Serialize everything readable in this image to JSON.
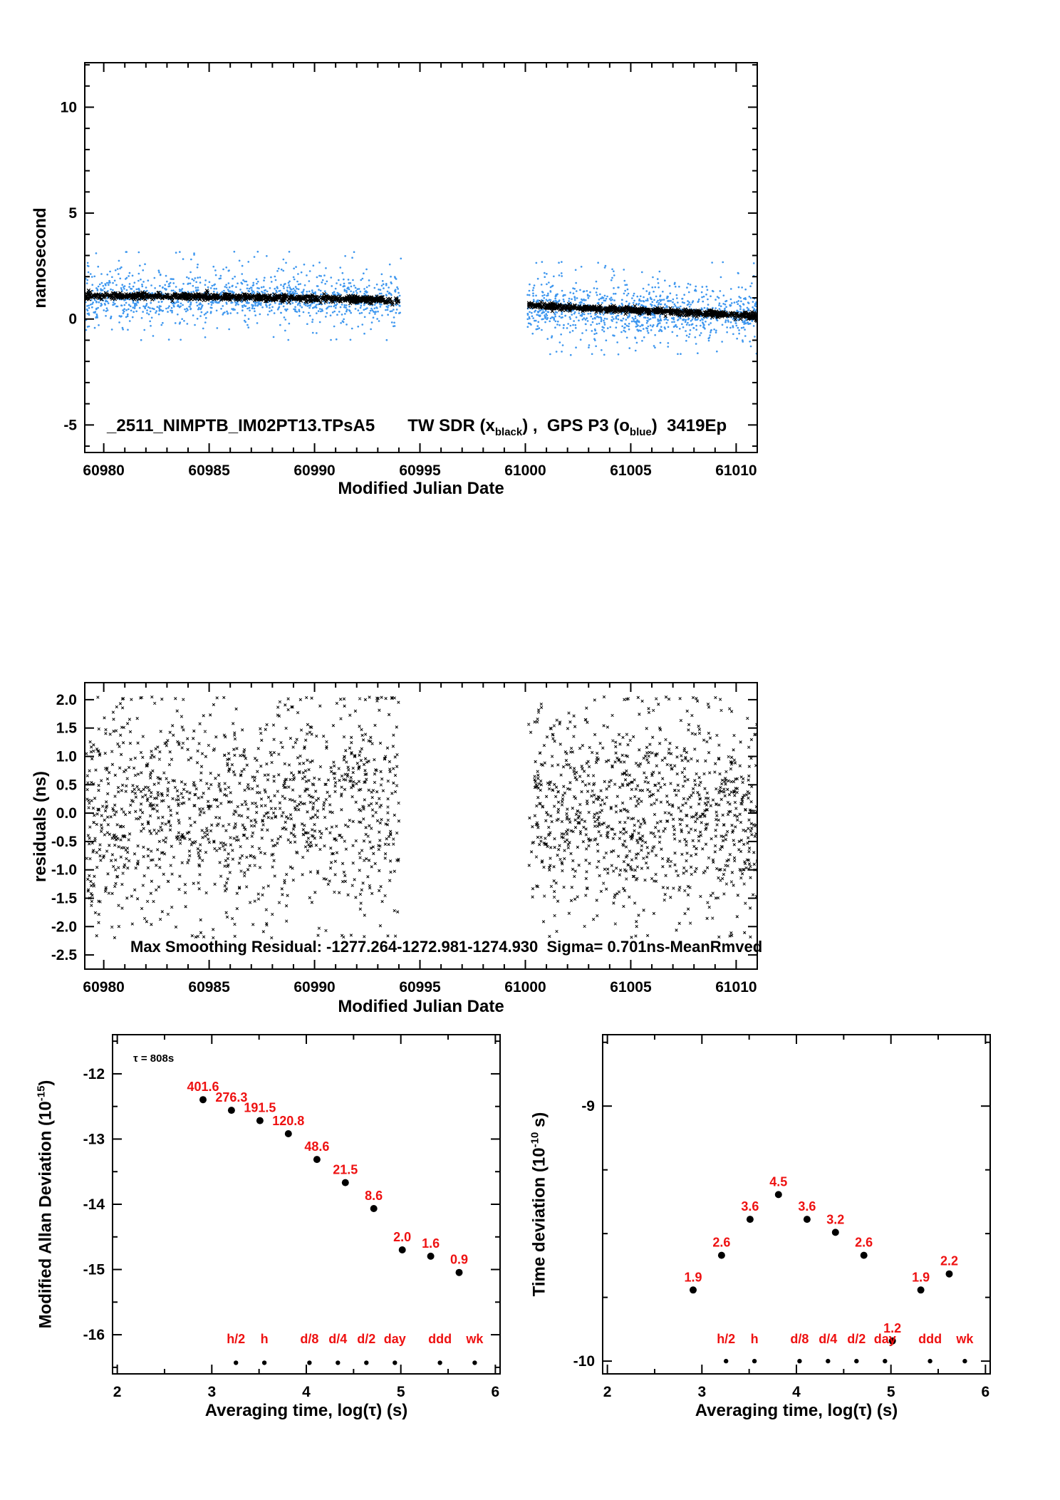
{
  "page": {
    "background": "#ffffff"
  },
  "colors": {
    "axis": "#000000",
    "blue": "#3e97ef",
    "red": "#ee1111"
  },
  "chart_data": [
    {
      "id": "time-transfer",
      "type": "scatter",
      "title": "_2511_NIMPTB_IM02PT13.TPsA5",
      "legend_parts": {
        "pre": "TW SDR (x",
        "sub1": "black",
        "mid": ") ,  GPS P3 (o",
        "sub2": "blue",
        "post": ")  3419Ep"
      },
      "xlabel": "Modified Julian Date",
      "ylabel": "nanosecond",
      "xlim": [
        60979.1,
        61011.0
      ],
      "ylim": [
        -6.3,
        12.1
      ],
      "xticks": {
        "vals": [
          60980,
          60985,
          60990,
          60995,
          61000,
          61005,
          61010
        ],
        "labels": [
          "60980",
          "60985",
          "60990",
          "60995",
          "61000",
          "61005",
          "61010"
        ],
        "minor_step": 1
      },
      "yticks": {
        "vals": [
          -5,
          0,
          5,
          10
        ],
        "labels": [
          "-5",
          "0",
          "5",
          "10"
        ],
        "minor_step": 1
      },
      "series": [
        {
          "name": "TW SDR",
          "marker": "x",
          "color": "black",
          "seed": 11,
          "msize": 2.3,
          "mstroke": 1.2,
          "segments": [
            {
              "x0": 60979.15,
              "x1": 60994.0,
              "n": 800,
              "trend_x": [
                60979.15,
                60982,
                60985,
                60988,
                60990.5,
                60992.5,
                60994
              ],
              "trend_y": [
                1.1,
                1.08,
                1.05,
                1.0,
                0.97,
                0.9,
                0.85
              ],
              "sigma": 0.07,
              "clip": [
                0.5,
                1.5
              ],
              "spike_p": 0.03,
              "spike_lo": 0.08,
              "spike_hi": 0.22,
              "pos_frac": 0.5,
              "diurnal": 0
            },
            {
              "x0": 61000.15,
              "x1": 61011.0,
              "n": 650,
              "trend_x": [
                61000.15,
                61002,
                61004,
                61006,
                61008,
                61009.5,
                61011
              ],
              "trend_y": [
                0.63,
                0.55,
                0.46,
                0.4,
                0.3,
                0.22,
                0.12
              ],
              "sigma": 0.07,
              "clip": [
                -0.35,
                1.1
              ],
              "spike_p": 0.03,
              "spike_lo": 0.08,
              "spike_hi": 0.22,
              "pos_frac": 0.5,
              "diurnal": 0
            }
          ]
        },
        {
          "name": "GPS P3",
          "marker": "dot",
          "color": "blue",
          "seed": 7,
          "msize": 2.6,
          "mstroke": 2.6,
          "segments": [
            {
              "x0": 60979.1,
              "x1": 60994.1,
              "n": 1300,
              "trend_x": [
                60979.1,
                60985,
                60990,
                60994.1
              ],
              "trend_y": [
                1.0,
                1.0,
                0.95,
                0.8
              ],
              "sigma": 0.38,
              "clip": [
                -1.0,
                3.2
              ],
              "spike_p": 0.1,
              "spike_lo": 0.5,
              "spike_hi": 1.9,
              "pos_frac": 0.75,
              "diurnal": 0.7
            },
            {
              "x0": 61000.1,
              "x1": 61011.0,
              "n": 1100,
              "trend_x": [
                61000.1,
                61003,
                61006,
                61009,
                61011
              ],
              "trend_y": [
                0.6,
                0.45,
                0.35,
                0.27,
                0.15
              ],
              "sigma": 0.42,
              "clip": [
                -1.7,
                2.7
              ],
              "spike_p": 0.12,
              "spike_lo": 0.5,
              "spike_hi": 2.0,
              "pos_frac": 0.55,
              "diurnal": 0.7
            }
          ]
        }
      ]
    },
    {
      "id": "residuals",
      "type": "scatter",
      "annotation": "Max Smoothing Residual: -1277.264-1272.981-1274.930  Sigma= 0.701ns-MeanRmved",
      "xlabel": "Modified Julian Date",
      "ylabel": "residuals (ns)",
      "xlim": [
        60979.1,
        61011.0
      ],
      "ylim": [
        -2.75,
        2.3
      ],
      "xticks": {
        "vals": [
          60980,
          60985,
          60990,
          60995,
          61000,
          61005,
          61010
        ],
        "labels": [
          "60980",
          "60985",
          "60990",
          "60995",
          "61000",
          "61005",
          "61010"
        ],
        "minor_step": 1
      },
      "yticks": {
        "vals": [
          -2.5,
          -2.0,
          -1.5,
          -1.0,
          -0.5,
          0.0,
          0.5,
          1.0,
          1.5,
          2.0
        ],
        "labels": [
          "-2.5",
          "-2.0",
          "-1.5",
          "-1.0",
          "-0.5",
          "0.0",
          "0.5",
          "1.0",
          "1.5",
          "2.0"
        ],
        "minor_step": 0
      },
      "series": [
        {
          "name": "smoothing residuals",
          "marker": "x",
          "color": "black",
          "seed": 23,
          "msize": 1.8,
          "mstroke": 1.0,
          "segments": [
            {
              "x0": 60979.15,
              "x1": 60994.0,
              "n": 1250,
              "trend_x": [
                60979.15,
                60994
              ],
              "trend_y": [
                0,
                0
              ],
              "sigma": 0.82,
              "clip": [
                -2.2,
                2.05
              ],
              "spike_p": 0,
              "spike_lo": 0,
              "spike_hi": 0,
              "pos_frac": 0.5,
              "diurnal": 0.3
            },
            {
              "x0": 61000.15,
              "x1": 61011.0,
              "n": 1000,
              "trend_x": [
                61000.15,
                61011
              ],
              "trend_y": [
                0,
                0
              ],
              "sigma": 0.82,
              "clip": [
                -2.2,
                2.05
              ],
              "spike_p": 0,
              "spike_lo": 0,
              "spike_hi": 0,
              "pos_frac": 0.5,
              "diurnal": 0.3
            }
          ]
        }
      ]
    },
    {
      "id": "mdev",
      "type": "scatter",
      "note": "τ = 808s",
      "xlabel": "Averaging time, log(τ) (s)",
      "ylabel_parts": {
        "pre": "Modified Allan Deviation (10",
        "sup": "-15",
        "post": ")"
      },
      "xlim": [
        1.95,
        6.05
      ],
      "ylim": [
        -16.6,
        -11.4
      ],
      "xticks": {
        "vals": [
          2,
          3,
          4,
          5,
          6
        ],
        "labels": [
          "2",
          "3",
          "4",
          "5",
          "6"
        ],
        "minor_step": 0.5
      },
      "yticks": {
        "vals": [
          -16,
          -15,
          -14,
          -13,
          -12
        ],
        "labels": [
          "-16",
          "-15",
          "-14",
          "-13",
          "-12"
        ],
        "minor_step": 0.5
      },
      "points": {
        "x": [
          2.907,
          3.208,
          3.509,
          3.81,
          4.112,
          4.413,
          4.714,
          5.015,
          5.316,
          5.617
        ],
        "y": [
          -12.396,
          -12.559,
          -12.718,
          -12.918,
          -13.313,
          -13.668,
          -14.066,
          -14.699,
          -14.796,
          -15.046
        ],
        "value_labels": [
          "401.6",
          "276.3",
          "191.5",
          "120.8",
          "48.6",
          "21.5",
          "8.6",
          "2.0",
          "1.6",
          "0.9"
        ]
      },
      "tau_markers": {
        "y_dot": -16.43,
        "y_label": -16.13,
        "items": [
          {
            "label": "h/2",
            "x": 3.255
          },
          {
            "label": "h",
            "x": 3.556
          },
          {
            "label": "d/8",
            "x": 4.033
          },
          {
            "label": "d/4",
            "x": 4.334
          },
          {
            "label": "d/2",
            "x": 4.635
          },
          {
            "label": "day",
            "x": 4.937
          },
          {
            "label": "ddd",
            "x": 5.414
          },
          {
            "label": "wk",
            "x": 5.782
          }
        ]
      }
    },
    {
      "id": "tdev",
      "type": "scatter",
      "xlabel": "Averaging time, log(τ) (s)",
      "ylabel_parts": {
        "pre": "Time deviation (10",
        "sup": "-10",
        "post": " s)"
      },
      "xlim": [
        1.95,
        6.05
      ],
      "ylim": [
        -10.05,
        -8.72
      ],
      "xticks": {
        "vals": [
          2,
          3,
          4,
          5,
          6
        ],
        "labels": [
          "2",
          "3",
          "4",
          "5",
          "6"
        ],
        "minor_step": 0.5
      },
      "yticks": {
        "vals": [
          -10,
          -9
        ],
        "labels": [
          "-10",
          "-9"
        ],
        "minor_step": 0.25
      },
      "points": {
        "x": [
          2.907,
          3.208,
          3.509,
          3.81,
          4.112,
          4.413,
          4.714,
          5.015,
          5.316,
          5.617
        ],
        "y": [
          -9.721,
          -9.585,
          -9.444,
          -9.347,
          -9.444,
          -9.495,
          -9.585,
          -9.921,
          -9.721,
          -9.658
        ],
        "value_labels": [
          "1.9",
          "2.6",
          "3.6",
          "4.5",
          "3.6",
          "3.2",
          "2.6",
          "1.2",
          "1.9",
          "2.2"
        ]
      },
      "tau_markers": {
        "y_dot": -10.0,
        "y_label": -9.93,
        "items": [
          {
            "label": "h/2",
            "x": 3.255
          },
          {
            "label": "h",
            "x": 3.556
          },
          {
            "label": "d/8",
            "x": 4.033
          },
          {
            "label": "d/4",
            "x": 4.334
          },
          {
            "label": "d/2",
            "x": 4.635
          },
          {
            "label": "day",
            "x": 4.937
          },
          {
            "label": "ddd",
            "x": 5.414
          },
          {
            "label": "wk",
            "x": 5.782
          }
        ]
      }
    }
  ]
}
